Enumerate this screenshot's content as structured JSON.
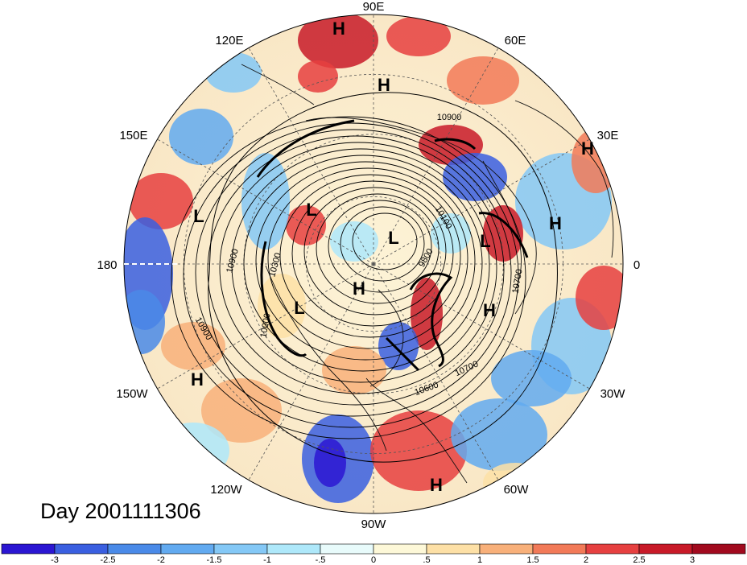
{
  "title": "Day 2001111306",
  "longitude_labels": [
    "90E",
    "60E",
    "30E",
    "0",
    "30W",
    "60W",
    "90W",
    "120W",
    "150W",
    "180",
    "150E",
    "120E"
  ],
  "pressure_centers": [
    {
      "type": "H"
    },
    {
      "type": "H"
    },
    {
      "type": "H"
    },
    {
      "type": "H"
    },
    {
      "type": "H"
    },
    {
      "type": "H"
    },
    {
      "type": "H"
    },
    {
      "type": "H"
    },
    {
      "type": "L"
    },
    {
      "type": "L"
    },
    {
      "type": "L"
    },
    {
      "type": "L"
    },
    {
      "type": "L"
    }
  ],
  "contour_labels": [
    "10900",
    "10100",
    "9800",
    "10700",
    "10600",
    "10700",
    "10900",
    "10300",
    "10900",
    "10900",
    "10000"
  ],
  "colorbar": {
    "ticks": [
      "-3",
      "-2.5",
      "-2",
      "-1.5",
      "-1",
      "-.5",
      "0",
      ".5",
      "1",
      "1.5",
      "2",
      "2.5",
      "3"
    ],
    "colors": [
      "#2b16d2",
      "#3a5fe0",
      "#4a8ae8",
      "#62aaf0",
      "#84c8f6",
      "#aee8fa",
      "#e8fbfb",
      "#fdf8d8",
      "#fde0a6",
      "#f8b07a",
      "#f27a58",
      "#e64040",
      "#c81a28",
      "#a10a1e"
    ]
  },
  "colors": {
    "negative_strong": "#2b16d2",
    "positive_strong": "#a10a1e",
    "land_outline": "#000000"
  }
}
